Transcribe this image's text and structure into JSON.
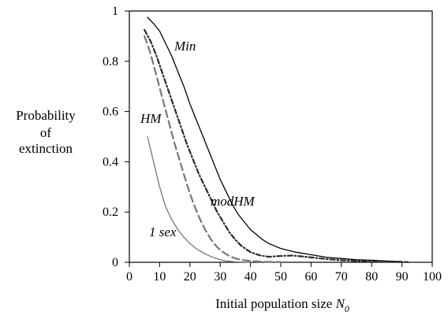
{
  "chart_data": {
    "type": "line",
    "xlabel_text": "Initial population size ",
    "xlabel_symbol": "N",
    "xlabel_subscript": "0",
    "ylabel_lines": [
      "Probability",
      "of",
      "extinction"
    ],
    "xlim": [
      0,
      100
    ],
    "ylim": [
      0,
      1
    ],
    "xticks": [
      0,
      10,
      20,
      30,
      40,
      50,
      60,
      70,
      80,
      90,
      100
    ],
    "yticks": [
      0,
      0.2,
      0.4,
      0.6,
      0.8,
      1
    ],
    "ytick_labels": [
      "0",
      "0.2",
      "0.4",
      "0.6",
      "0.8",
      "1"
    ],
    "grid": false,
    "series": [
      {
        "name": "Min",
        "style": "solid",
        "color": "#000000",
        "x": [
          6,
          8,
          10,
          12,
          14,
          16,
          18,
          20,
          22,
          24,
          26,
          28,
          30,
          32,
          34,
          36,
          38,
          40,
          42,
          44,
          46,
          48,
          50,
          55,
          60,
          65,
          70,
          75,
          80,
          85,
          90
        ],
        "y": [
          0.975,
          0.95,
          0.92,
          0.87,
          0.82,
          0.76,
          0.7,
          0.63,
          0.57,
          0.51,
          0.45,
          0.39,
          0.33,
          0.28,
          0.23,
          0.19,
          0.16,
          0.13,
          0.11,
          0.09,
          0.075,
          0.065,
          0.055,
          0.04,
          0.03,
          0.02,
          0.015,
          0.01,
          0.008,
          0.005,
          0.003
        ]
      },
      {
        "name": "modHM",
        "style": "dashdot",
        "color": "#2a2a2a",
        "x": [
          5,
          7,
          9,
          11,
          13,
          15,
          17,
          19,
          21,
          23,
          25,
          27,
          29,
          31,
          33,
          35,
          37,
          40,
          43,
          46,
          50,
          54,
          58,
          62,
          66,
          70,
          75,
          80,
          85,
          90,
          92
        ],
        "y": [
          0.925,
          0.88,
          0.82,
          0.75,
          0.68,
          0.61,
          0.54,
          0.47,
          0.41,
          0.35,
          0.3,
          0.25,
          0.2,
          0.16,
          0.12,
          0.09,
          0.065,
          0.04,
          0.028,
          0.022,
          0.025,
          0.027,
          0.022,
          0.017,
          0.012,
          0.008,
          0.005,
          0.003,
          0.002,
          0.001,
          0.001
        ]
      },
      {
        "name": "HM",
        "style": "dashed",
        "color": "#777777",
        "x": [
          5,
          7,
          9,
          11,
          13,
          15,
          17,
          19,
          21,
          23,
          25,
          27,
          29,
          31,
          33,
          35,
          37,
          40,
          45,
          50
        ],
        "y": [
          0.9,
          0.83,
          0.74,
          0.65,
          0.56,
          0.47,
          0.39,
          0.31,
          0.24,
          0.18,
          0.13,
          0.09,
          0.06,
          0.04,
          0.025,
          0.015,
          0.01,
          0.005,
          0.002,
          0.001
        ]
      },
      {
        "name": "1 sex",
        "style": "solid",
        "color": "#777777",
        "x": [
          6,
          8,
          10,
          12,
          14,
          16,
          18,
          20,
          22,
          24,
          26,
          28,
          30,
          32,
          35,
          40
        ],
        "y": [
          0.5,
          0.4,
          0.3,
          0.22,
          0.17,
          0.13,
          0.1,
          0.075,
          0.055,
          0.04,
          0.028,
          0.018,
          0.01,
          0.005,
          0.002,
          0.0
        ]
      }
    ],
    "annotations": [
      {
        "text": "Min",
        "series": "Min"
      },
      {
        "text": "modHM",
        "series": "modHM"
      },
      {
        "text": "HM",
        "series": "HM"
      },
      {
        "text": "1 sex",
        "series": "1 sex"
      }
    ]
  }
}
